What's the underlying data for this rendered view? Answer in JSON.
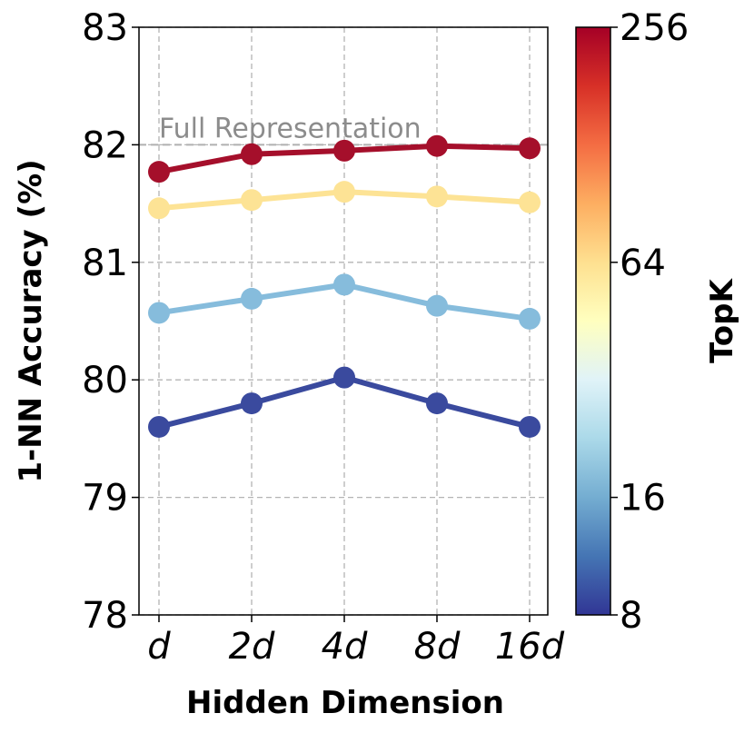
{
  "chart_data": {
    "type": "line",
    "xlabel": "Hidden Dimension",
    "ylabel": "1-NN Accuracy (%)",
    "categories": [
      "d",
      "2d",
      "4d",
      "8d",
      "16d"
    ],
    "yticks": [
      "78",
      "79",
      "80",
      "81",
      "82",
      "83"
    ],
    "ylim": [
      78,
      83
    ],
    "grid": true,
    "reference_line": {
      "label": "Full Representation",
      "value": 82.0
    },
    "series": [
      {
        "topk": 256,
        "color": "#a50f2b",
        "values": [
          81.77,
          81.92,
          81.95,
          81.99,
          81.97
        ]
      },
      {
        "topk": 64,
        "color": "#fde395",
        "values": [
          81.46,
          81.53,
          81.6,
          81.56,
          81.51
        ]
      },
      {
        "topk": 16,
        "color": "#86bcdc",
        "values": [
          80.57,
          80.69,
          80.81,
          80.63,
          80.52
        ]
      },
      {
        "topk": 8,
        "color": "#3a4a9e",
        "values": [
          79.6,
          79.8,
          80.02,
          79.8,
          79.6
        ]
      }
    ],
    "colorbar": {
      "label": "TopK",
      "scale": "log2",
      "range": [
        8,
        256
      ],
      "ticks": [
        "8",
        "16",
        "64",
        "256"
      ],
      "colormap": "RdYlBu_r"
    }
  }
}
